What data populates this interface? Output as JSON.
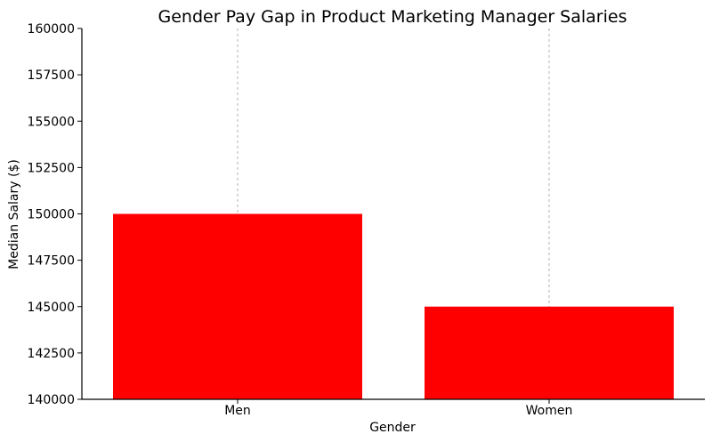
{
  "chart_data": {
    "type": "bar",
    "title": "Gender Pay Gap in Product Marketing Manager Salaries",
    "xlabel": "Gender",
    "ylabel": "Median Salary ($)",
    "categories": [
      "Men",
      "Women"
    ],
    "values": [
      150000,
      145000
    ],
    "ylim": [
      140000,
      160000
    ],
    "yticks": [
      "140000",
      "142500",
      "145000",
      "147500",
      "150000",
      "152500",
      "155000",
      "157500",
      "160000"
    ],
    "bar_color": "#ff0000",
    "grid": "x-dashed"
  }
}
